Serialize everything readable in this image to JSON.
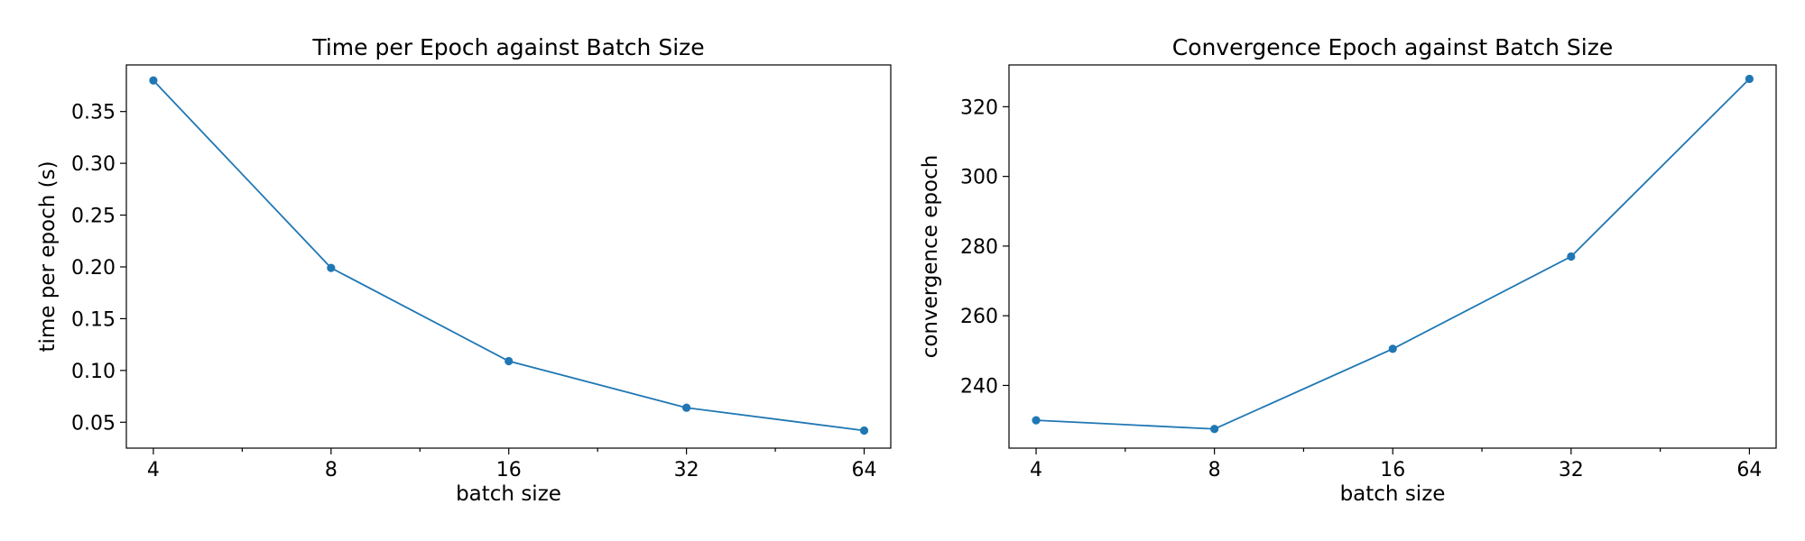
{
  "chart_data": [
    {
      "type": "line",
      "title": "Time per Epoch against Batch Size",
      "xlabel": "batch size",
      "ylabel": "time per epoch (s)",
      "x_scale": "log2",
      "x": [
        4,
        8,
        16,
        32,
        64
      ],
      "x_ticks": [
        "4",
        "8",
        "16",
        "32",
        "64"
      ],
      "xlim": [
        3.6,
        71
      ],
      "ylim": [
        0.025,
        0.395
      ],
      "y_ticks": [
        0.05,
        0.1,
        0.15,
        0.2,
        0.25,
        0.3,
        0.35
      ],
      "y_tick_labels": [
        "0.05",
        "0.10",
        "0.15",
        "0.20",
        "0.25",
        "0.30",
        "0.35"
      ],
      "series": [
        {
          "values": [
            0.38,
            0.199,
            0.109,
            0.064,
            0.042
          ],
          "color": "#1f77b4",
          "marker": "circle"
        }
      ],
      "grid": false
    },
    {
      "type": "line",
      "title": "Convergence Epoch against Batch Size",
      "xlabel": "batch size",
      "ylabel": "convergence epoch",
      "x_scale": "log2",
      "x": [
        4,
        8,
        16,
        32,
        64
      ],
      "x_ticks": [
        "4",
        "8",
        "16",
        "32",
        "64"
      ],
      "xlim": [
        3.6,
        71
      ],
      "ylim": [
        222,
        332
      ],
      "y_ticks": [
        240,
        260,
        280,
        300,
        320
      ],
      "y_tick_labels": [
        "240",
        "260",
        "280",
        "300",
        "320"
      ],
      "series": [
        {
          "values": [
            230,
            227.5,
            250.5,
            277,
            328
          ],
          "color": "#1f77b4",
          "marker": "circle"
        }
      ],
      "grid": false
    }
  ]
}
